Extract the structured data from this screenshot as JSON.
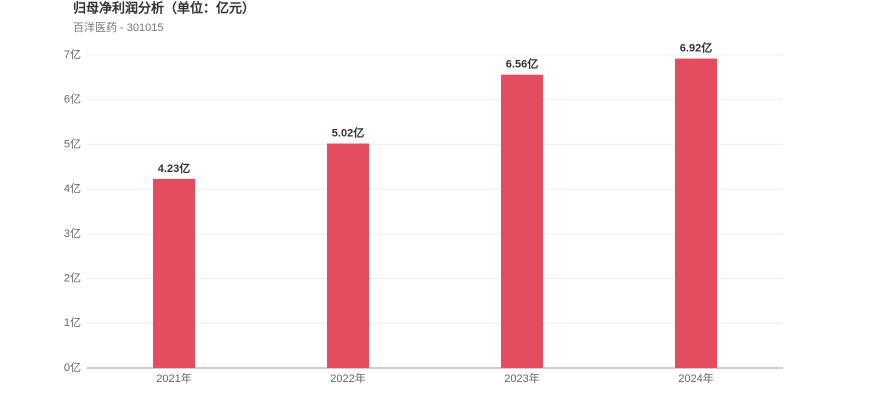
{
  "chart_data": {
    "type": "bar",
    "title": "归母净利润分析（单位：亿元）",
    "subtitle": "百洋医药 - 301015",
    "categories": [
      "2021年",
      "2022年",
      "2023年",
      "2024年"
    ],
    "values": [
      4.23,
      5.02,
      6.56,
      6.92
    ],
    "value_labels": [
      "4.23亿",
      "5.02亿",
      "6.56亿",
      "6.92亿"
    ],
    "color": "#e44d5f",
    "ylim": [
      0,
      7
    ],
    "yticks": [
      {
        "value": 0,
        "label": "0亿"
      },
      {
        "value": 1,
        "label": "1亿"
      },
      {
        "value": 2,
        "label": "2亿"
      },
      {
        "value": 3,
        "label": "3亿"
      },
      {
        "value": 4,
        "label": "4亿"
      },
      {
        "value": 5,
        "label": "5亿"
      },
      {
        "value": 6,
        "label": "6亿"
      },
      {
        "value": 7,
        "label": "7亿"
      }
    ],
    "grid": true
  }
}
